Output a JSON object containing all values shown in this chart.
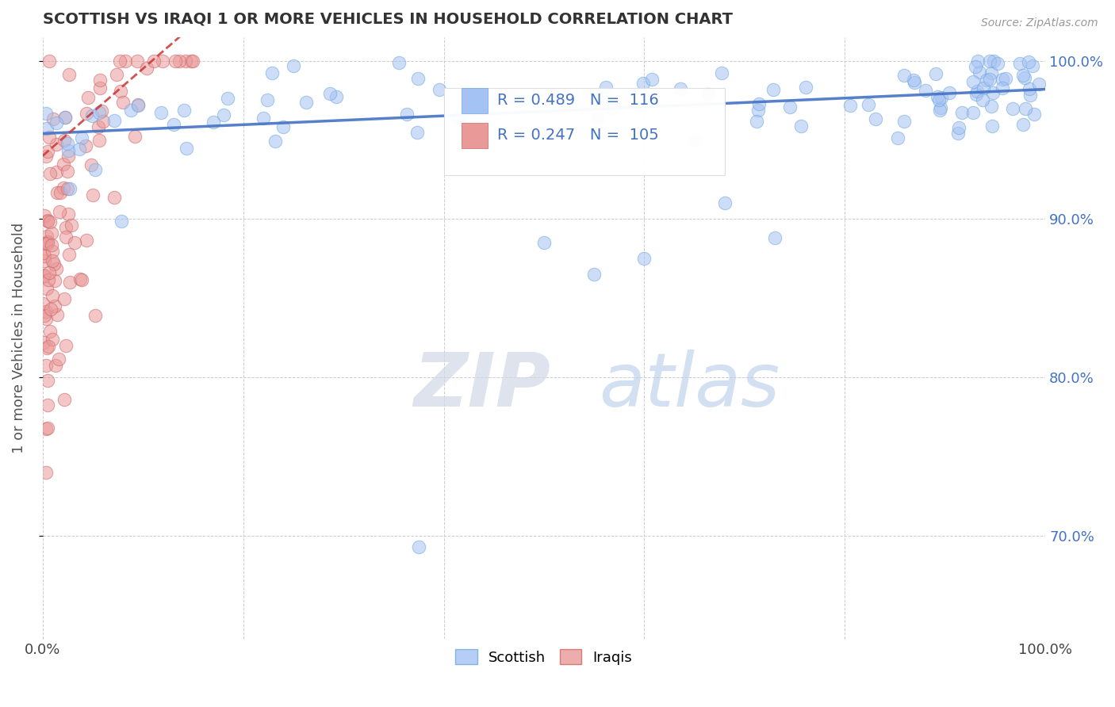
{
  "title": "SCOTTISH VS IRAQI 1 OR MORE VEHICLES IN HOUSEHOLD CORRELATION CHART",
  "source_text": "Source: ZipAtlas.com",
  "ylabel": "1 or more Vehicles in Household",
  "xlim": [
    0,
    1.0
  ],
  "ylim": [
    0.635,
    1.015
  ],
  "scottish_color": "#a4c2f4",
  "scottish_edge_color": "#6fa8dc",
  "iraqi_color": "#ea9999",
  "iraqi_edge_color": "#cc6666",
  "scottish_R": 0.489,
  "scottish_N": 116,
  "iraqi_R": 0.247,
  "iraqi_N": 105,
  "legend_label_scottish": "Scottish",
  "legend_label_iraqi": "Iraqis",
  "watermark_zip": "ZIP",
  "watermark_atlas": "atlas",
  "background_color": "#ffffff",
  "grid_color": "#cccccc",
  "title_color": "#333333",
  "axis_label_color": "#555555",
  "right_tick_color": "#4472c4",
  "trend_line_scottish_color": "#4472c4",
  "trend_line_iraqi_color": "#cc3333",
  "legend_box_color": "#eeeeee"
}
